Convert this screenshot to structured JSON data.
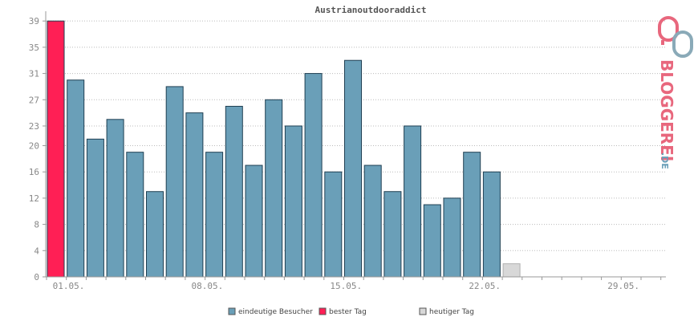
{
  "colors": {
    "bar": "#6a9fb8",
    "best": "#ff1f55",
    "today": "#d8d8d8",
    "grid": "#bbbbbb",
    "axis": "#999999"
  },
  "logo": {
    "name": "BLOGGEREI",
    "suffix": ".DE"
  },
  "legend": [
    {
      "label": "eindeutige Besucher",
      "color": "#6a9fb8"
    },
    {
      "label": "bester Tag",
      "color": "#ff1f55"
    },
    {
      "label": "heutiger Tag",
      "color": "#d8d8d8"
    }
  ],
  "chart_data": {
    "type": "bar",
    "title": "Austrianoutdooraddict",
    "xlabel": "",
    "ylabel": "",
    "ylim": [
      0,
      40
    ],
    "yticks": [
      0,
      4,
      8,
      12,
      16,
      20,
      23,
      27,
      31,
      35,
      39
    ],
    "xtick_labels": [
      {
        "label": "01.05.",
        "index": 0
      },
      {
        "label": "08.05.",
        "index": 7
      },
      {
        "label": "15.05.",
        "index": 14
      },
      {
        "label": "22.05.",
        "index": 21
      },
      {
        "label": "29.05.",
        "index": 28
      }
    ],
    "total_slots": 31,
    "categories": [
      "01.05.",
      "02.05.",
      "03.05.",
      "04.05.",
      "05.05.",
      "06.05.",
      "07.05.",
      "08.05.",
      "09.05.",
      "10.05.",
      "11.05.",
      "12.05.",
      "13.05.",
      "14.05.",
      "15.05.",
      "16.05.",
      "17.05.",
      "18.05.",
      "19.05.",
      "20.05.",
      "21.05.",
      "22.05.",
      "23.05.",
      "24.05."
    ],
    "values": [
      39,
      30,
      21,
      24,
      19,
      13,
      29,
      25,
      19,
      26,
      17,
      27,
      23,
      31,
      16,
      33,
      17,
      13,
      23,
      11,
      12,
      19,
      16,
      2
    ],
    "best_index": 0,
    "today_index": 23,
    "grid": true,
    "legend_position": "bottom"
  }
}
